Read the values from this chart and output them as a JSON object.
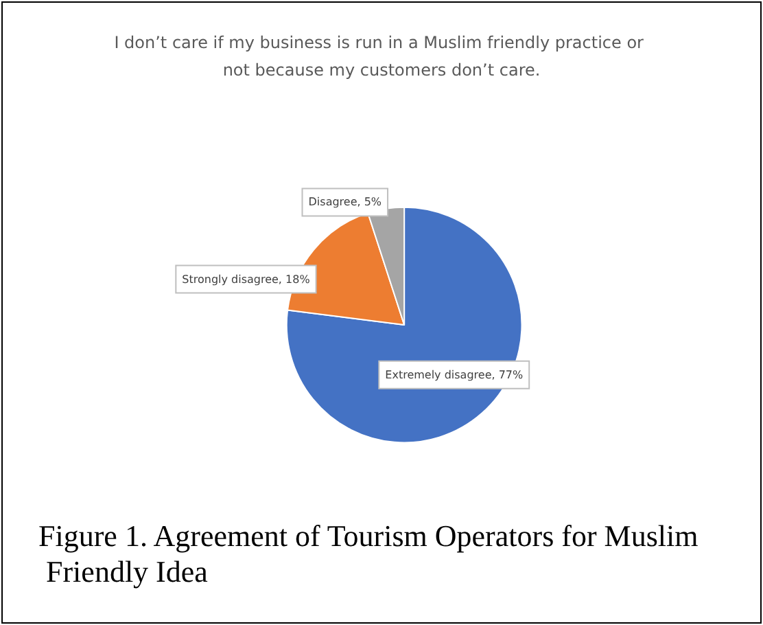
{
  "chart_data": {
    "type": "pie",
    "title": "I don’t care if my business is run in a Muslim friendly practice or not because my customers don’t care.",
    "categories": [
      "Extremely disagree",
      "Strongly disagree",
      "Disagree"
    ],
    "value_labels": [
      "77%",
      "18%",
      "5%"
    ],
    "values": [
      77,
      18,
      5
    ],
    "colors": [
      "#4472c4",
      "#ed7d31",
      "#a5a5a5"
    ],
    "legend": false,
    "annotations": [
      "Figure 1. Agreement of Tourism Operators for Muslim Friendly Idea"
    ]
  }
}
